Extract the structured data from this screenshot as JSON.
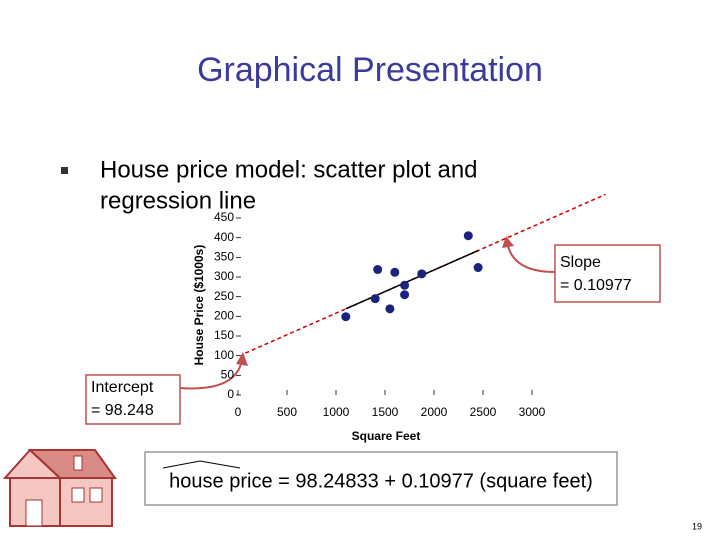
{
  "slide": {
    "title": "Graphical Presentation",
    "bullet": [
      "House price model:  scatter plot and",
      "regression line"
    ],
    "intercept_note": [
      "Intercept",
      "= 98.248"
    ],
    "slope_note": [
      "Slope",
      "= 0.10977"
    ],
    "equation": "house price = 98.24833 + 0.10977 (square feet)",
    "page_number": "19"
  },
  "chart_data": {
    "type": "scatter",
    "x_label": "Square Feet",
    "y_label": "House Price ($1000s)",
    "x": [
      1400,
      1600,
      1700,
      1875,
      1100,
      1550,
      2350,
      2450,
      1425,
      1700
    ],
    "values": [
      245,
      312,
      279,
      308,
      199,
      219,
      405,
      324,
      319,
      255
    ],
    "color": "#1a237e",
    "xlim": [
      0,
      3000
    ],
    "xticks": [
      0,
      500,
      1000,
      1500,
      2000,
      2500,
      3000
    ],
    "ylim": [
      0,
      450
    ],
    "yticks": [
      0,
      50,
      100,
      150,
      200,
      250,
      300,
      350,
      400,
      450
    ],
    "regression": {
      "intercept": 98.24833,
      "slope": 0.10977,
      "color": "#cc0000"
    }
  }
}
